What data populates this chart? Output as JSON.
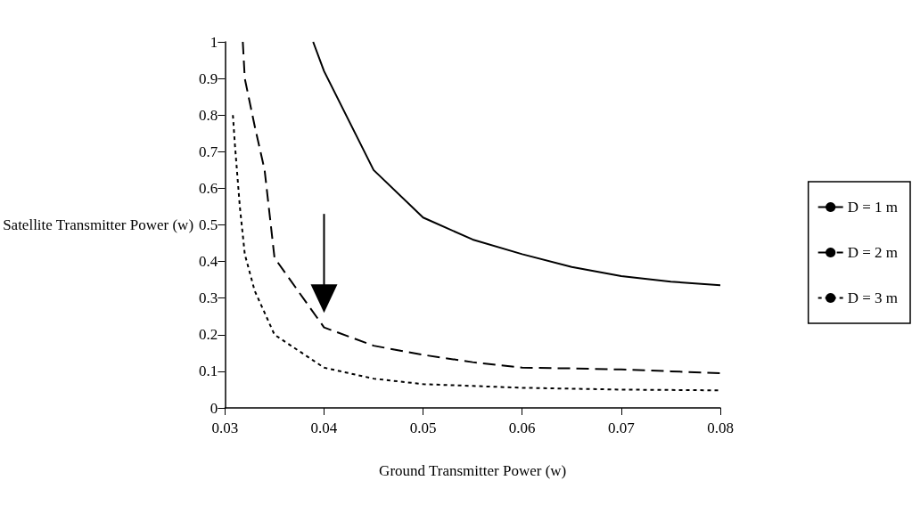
{
  "chart_data": {
    "type": "line",
    "xlabel": "Ground Transmitter Power (w)",
    "ylabel": "Satellite Transmitter Power (w)",
    "xlim": [
      0.03,
      0.08
    ],
    "xticks": [
      0.03,
      0.04,
      0.05,
      0.06,
      0.07,
      0.08
    ],
    "ylim": [
      0,
      1
    ],
    "yticks": [
      0,
      0.1,
      0.2,
      0.3,
      0.4,
      0.5,
      0.6,
      0.7,
      0.8,
      0.9,
      1
    ],
    "grid": false,
    "legend": "right",
    "marker": "none",
    "series": [
      {
        "name": "D = 1 m",
        "color": "#000000",
        "line_style": "solid",
        "x": [
          0.0389,
          0.04,
          0.045,
          0.05,
          0.055,
          0.06,
          0.065,
          0.07,
          0.075,
          0.08
        ],
        "values": [
          1,
          0.92,
          0.65,
          0.52,
          0.46,
          0.42,
          0.385,
          0.36,
          0.345,
          0.335
        ]
      },
      {
        "name": "D = 2 m",
        "color": "#000000",
        "line_style": "dashed",
        "x": [
          0.0318,
          0.032,
          0.033,
          0.034,
          0.035,
          0.04,
          0.045,
          0.05,
          0.055,
          0.06,
          0.065,
          0.07,
          0.075,
          0.08
        ],
        "values": [
          1,
          0.9,
          0.77,
          0.65,
          0.41,
          0.22,
          0.17,
          0.145,
          0.125,
          0.11,
          0.108,
          0.105,
          0.1,
          0.095
        ]
      },
      {
        "name": "D = 3 m",
        "color": "#000000",
        "line_style": "dotted",
        "x": [
          0.0308,
          0.031,
          0.0315,
          0.032,
          0.033,
          0.034,
          0.035,
          0.04,
          0.045,
          0.05,
          0.055,
          0.06,
          0.07,
          0.08
        ],
        "values": [
          0.8,
          0.72,
          0.55,
          0.42,
          0.32,
          0.26,
          0.2,
          0.11,
          0.08,
          0.065,
          0.06,
          0.055,
          0.05,
          0.048
        ]
      }
    ]
  }
}
